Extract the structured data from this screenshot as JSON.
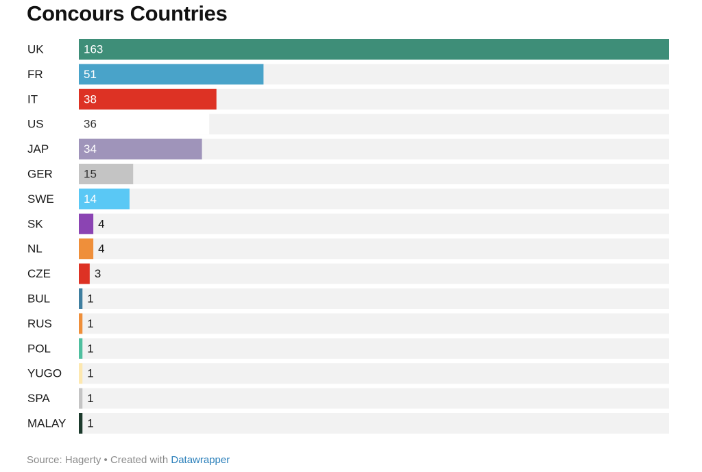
{
  "chart_data": {
    "type": "bar",
    "orientation": "horizontal",
    "title": "Concours Countries",
    "categories": [
      "UK",
      "FR",
      "IT",
      "US",
      "JAP",
      "GER",
      "SWE",
      "SK",
      "NL",
      "CZE",
      "BUL",
      "RUS",
      "POL",
      "YUGO",
      "SPA",
      "MALAY"
    ],
    "values": [
      163,
      51,
      38,
      36,
      34,
      15,
      14,
      4,
      4,
      3,
      1,
      1,
      1,
      1,
      1,
      1
    ],
    "colors": [
      "#3e8e78",
      "#49a3c9",
      "#dd3224",
      "#ffffff",
      "#9f94ba",
      "#c4c4c4",
      "#5ac8f5",
      "#8b44b3",
      "#ef8f3a",
      "#dd3224",
      "#3f7fa0",
      "#ef8f3a",
      "#4fbf9f",
      "#fde8b0",
      "#c4c4c4",
      "#1c3a2c"
    ],
    "background_bar_color": "#f2f2f2",
    "xlim": [
      0,
      163
    ],
    "grid": false,
    "legend": "none"
  },
  "footer": {
    "source_text": "Source: Hagerty • Created with ",
    "link_text": "Datawrapper"
  }
}
